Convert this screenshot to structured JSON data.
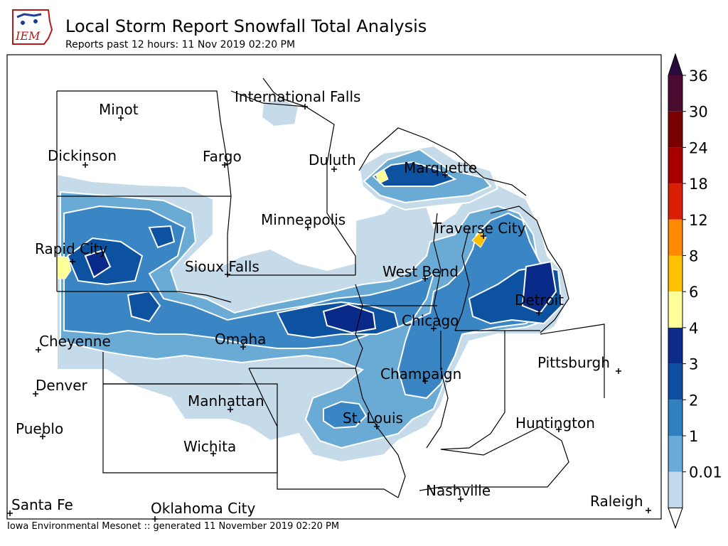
{
  "header": {
    "title": "Local Storm Report Snowfall Total Analysis",
    "subtitle": "Reports past 12 hours: 11 Nov 2019 02:20 PM",
    "logo_text": "IEM"
  },
  "footer": {
    "credit": "Iowa Environmental Mesonet :: generated 11 November 2019 02:20 PM"
  },
  "cities": [
    {
      "name": "International Falls"
    },
    {
      "name": "Minot"
    },
    {
      "name": "Dickinson"
    },
    {
      "name": "Fargo"
    },
    {
      "name": "Duluth"
    },
    {
      "name": "Marquette"
    },
    {
      "name": "Minneapolis"
    },
    {
      "name": "Traverse City"
    },
    {
      "name": "Rapid City"
    },
    {
      "name": "Sioux Falls"
    },
    {
      "name": "West Bend"
    },
    {
      "name": "Detroit"
    },
    {
      "name": "Chicago"
    },
    {
      "name": "Cheyenne"
    },
    {
      "name": "Omaha"
    },
    {
      "name": "Pittsburgh"
    },
    {
      "name": "Champaign"
    },
    {
      "name": "Denver"
    },
    {
      "name": "Manhattan"
    },
    {
      "name": "St. Louis"
    },
    {
      "name": "Huntington"
    },
    {
      "name": "Pueblo"
    },
    {
      "name": "Wichita"
    },
    {
      "name": "Nashville"
    },
    {
      "name": "Santa Fe"
    },
    {
      "name": "Oklahoma City"
    },
    {
      "name": "Raleigh"
    }
  ],
  "colorbar": {
    "ticks": [
      "36",
      "30",
      "24",
      "18",
      "12",
      "8",
      "6",
      "4",
      "3",
      "2",
      "1",
      "0.01"
    ],
    "colors": [
      "#4b0a30",
      "#7a0000",
      "#a80000",
      "#d81e05",
      "#ff8a00",
      "#ffc000",
      "#ffff99",
      "#0c2c8c",
      "#0b4ea2",
      "#3080c0",
      "#68aad8",
      "#c3dbec"
    ],
    "overflow_color": "#2a0a3c"
  },
  "legend_levels": {
    "lightest": "#c6dbea",
    "light": "#6aabd6",
    "mid": "#3a85c4",
    "dark": "#0d52a0",
    "darkest": "#0a2a8a",
    "yellow": "#ffff99",
    "orange": "#ffc000"
  }
}
